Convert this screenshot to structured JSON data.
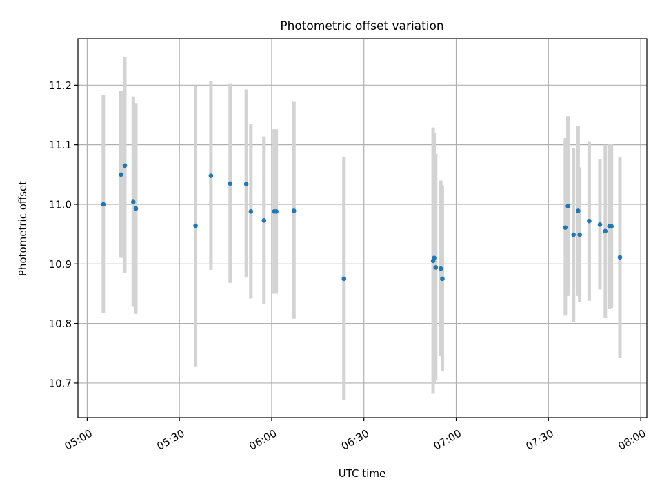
{
  "chart_data": {
    "type": "scatter",
    "title": "Photometric offset variation",
    "xlabel": "UTC time",
    "ylabel": "Photometric offset",
    "x_is_time": true,
    "xlim": [
      "04:57",
      "08:02"
    ],
    "ylim": [
      10.642,
      11.278
    ],
    "x_ticks": [
      "05:00",
      "05:30",
      "06:00",
      "06:30",
      "07:00",
      "07:30",
      "08:00"
    ],
    "y_ticks": [
      10.7,
      10.8,
      10.9,
      11.0,
      11.1,
      11.2
    ],
    "y_tick_labels": [
      "10.7",
      "10.8",
      "10.9",
      "11.0",
      "11.1",
      "11.2"
    ],
    "grid": true,
    "marker_color": "#1f77b4",
    "errorbar_color": "#d3d3d3",
    "points": [
      {
        "t": "05:05:15",
        "y": 11.0,
        "lo": 10.818,
        "hi": 11.183
      },
      {
        "t": "05:11:00",
        "y": 11.05,
        "lo": 10.91,
        "hi": 11.19
      },
      {
        "t": "05:12:15",
        "y": 11.065,
        "lo": 10.885,
        "hi": 11.247
      },
      {
        "t": "05:15:00",
        "y": 11.004,
        "lo": 10.828,
        "hi": 11.181
      },
      {
        "t": "05:15:50",
        "y": 10.993,
        "lo": 10.816,
        "hi": 11.17
      },
      {
        "t": "05:35:15",
        "y": 10.964,
        "lo": 10.728,
        "hi": 11.199
      },
      {
        "t": "05:40:15",
        "y": 11.048,
        "lo": 10.89,
        "hi": 11.206
      },
      {
        "t": "05:46:30",
        "y": 11.035,
        "lo": 10.868,
        "hi": 11.203
      },
      {
        "t": "05:51:45",
        "y": 11.034,
        "lo": 10.877,
        "hi": 11.193
      },
      {
        "t": "05:53:15",
        "y": 10.988,
        "lo": 10.842,
        "hi": 11.135
      },
      {
        "t": "05:57:30",
        "y": 10.973,
        "lo": 10.833,
        "hi": 11.114
      },
      {
        "t": "06:00:50",
        "y": 10.988,
        "lo": 10.85,
        "hi": 11.126
      },
      {
        "t": "06:01:30",
        "y": 10.988,
        "lo": 10.85,
        "hi": 11.126
      },
      {
        "t": "06:07:15",
        "y": 10.989,
        "lo": 10.808,
        "hi": 11.172
      },
      {
        "t": "06:23:30",
        "y": 10.875,
        "lo": 10.672,
        "hi": 11.079
      },
      {
        "t": "06:52:30",
        "y": 10.905,
        "lo": 10.682,
        "hi": 11.129
      },
      {
        "t": "06:52:50",
        "y": 10.91,
        "lo": 10.7,
        "hi": 11.12
      },
      {
        "t": "06:53:20",
        "y": 10.894,
        "lo": 10.705,
        "hi": 11.085
      },
      {
        "t": "06:55:00",
        "y": 10.892,
        "lo": 10.745,
        "hi": 11.04
      },
      {
        "t": "06:55:30",
        "y": 10.875,
        "lo": 10.72,
        "hi": 11.032
      },
      {
        "t": "07:35:30",
        "y": 10.961,
        "lo": 10.813,
        "hi": 11.111
      },
      {
        "t": "07:36:20",
        "y": 10.997,
        "lo": 10.846,
        "hi": 11.148
      },
      {
        "t": "07:38:10",
        "y": 10.949,
        "lo": 10.803,
        "hi": 11.095
      },
      {
        "t": "07:39:40",
        "y": 10.989,
        "lo": 10.846,
        "hi": 11.132
      },
      {
        "t": "07:40:10",
        "y": 10.949,
        "lo": 10.836,
        "hi": 11.062
      },
      {
        "t": "07:43:15",
        "y": 10.972,
        "lo": 10.838,
        "hi": 11.106
      },
      {
        "t": "07:46:45",
        "y": 10.966,
        "lo": 10.857,
        "hi": 11.076
      },
      {
        "t": "07:48:30",
        "y": 10.955,
        "lo": 10.81,
        "hi": 11.1
      },
      {
        "t": "07:49:50",
        "y": 10.963,
        "lo": 10.825,
        "hi": 11.101
      },
      {
        "t": "07:50:30",
        "y": 10.963,
        "lo": 10.826,
        "hi": 11.101
      },
      {
        "t": "07:53:15",
        "y": 10.911,
        "lo": 10.742,
        "hi": 11.08
      }
    ]
  }
}
